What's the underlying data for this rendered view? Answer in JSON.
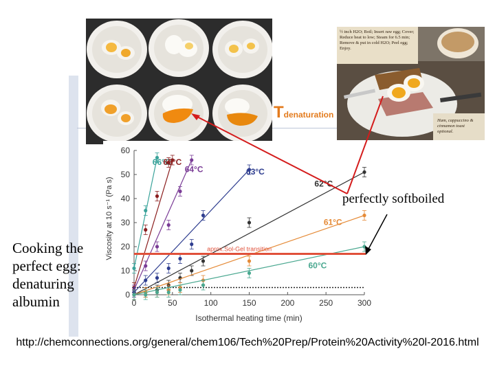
{
  "photo_label": {
    "T": "T",
    "sub": "denaturation"
  },
  "breakfast_note": {
    "steps": "½ inch H2O; Boil; Insert raw egg; Cover; Reduce heat to low; Steam for 6.5 min; Remove & put in cold H2O; Peel egg; Enjoy.",
    "optional": "Ham, cappuccino & cinnamon toast optional."
  },
  "callout": "perfectly softboiled",
  "caption_lines": [
    "Cooking the",
    "perfect egg:",
    "denaturing",
    "albumin"
  ],
  "source_url": "http://chemconnections.org/general/chem106/Tech%20Prep/Protein%20Activity%20l-2016.html",
  "chart_data": {
    "type": "scatter",
    "xlabel": "Isothermal heating time (min)",
    "ylabel": "Viscosity at 10 s⁻¹ (Pa s)",
    "xlim": [
      0,
      300
    ],
    "ylim": [
      0,
      60
    ],
    "xticks": [
      0,
      50,
      100,
      150,
      200,
      250,
      300
    ],
    "yticks": [
      0,
      10,
      20,
      30,
      40,
      50,
      60
    ],
    "threshold": {
      "y": 17,
      "label": "aprox.Sol-Gel transition",
      "color": "#e0503a"
    },
    "baseline": {
      "y": 3
    },
    "series": [
      {
        "name": "66°C",
        "color": "#3aa39a",
        "x": [
          0,
          15,
          30
        ],
        "y": [
          11,
          35,
          57
        ]
      },
      {
        "name": "65°C",
        "color": "#8b1e1e",
        "x": [
          0,
          15,
          30,
          45,
          50
        ],
        "y": [
          3,
          27,
          41,
          55,
          56
        ]
      },
      {
        "name": "64°C",
        "color": "#7a3c96",
        "x": [
          0,
          15,
          30,
          45,
          60,
          75
        ],
        "y": [
          2,
          12,
          20,
          29,
          43,
          56
        ]
      },
      {
        "name": "63°C",
        "color": "#2e3d8f",
        "x": [
          0,
          15,
          30,
          45,
          60,
          75,
          90,
          150
        ],
        "y": [
          1,
          6,
          7,
          11,
          15,
          21,
          33,
          52
        ]
      },
      {
        "name": "62°C",
        "color": "#333333",
        "x": [
          0,
          15,
          30,
          45,
          60,
          75,
          90,
          150,
          300
        ],
        "y": [
          0,
          1,
          2,
          4,
          7,
          10,
          14,
          30,
          51
        ]
      },
      {
        "name": "61°C",
        "color": "#e58a36",
        "x": [
          0,
          15,
          30,
          45,
          60,
          90,
          150,
          300
        ],
        "y": [
          0,
          1,
          1,
          2,
          3,
          6,
          14,
          33
        ]
      },
      {
        "name": "60°C",
        "color": "#4aa890",
        "x": [
          0,
          15,
          30,
          45,
          60,
          90,
          150,
          300
        ],
        "y": [
          0,
          0,
          1,
          1,
          2,
          4,
          9,
          20
        ]
      }
    ],
    "series_label_pos": [
      {
        "x": 24,
        "y": 54
      },
      {
        "x": 38,
        "y": 54
      },
      {
        "x": 66,
        "y": 51
      },
      {
        "x": 146,
        "y": 50
      },
      {
        "x": 235,
        "y": 45
      },
      {
        "x": 247,
        "y": 29
      },
      {
        "x": 227,
        "y": 11
      }
    ]
  }
}
